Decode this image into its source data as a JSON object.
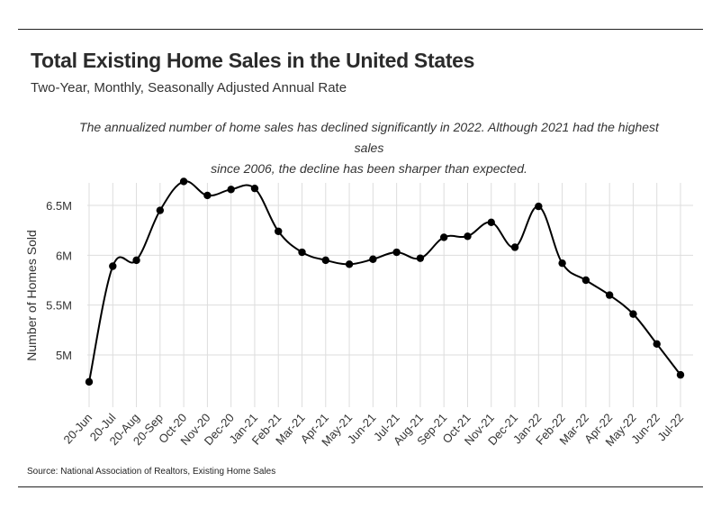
{
  "title": "Total Existing Home Sales in the United States",
  "subtitle": "Two-Year, Monthly, Seasonally Adjusted Annual Rate",
  "note_line1": "The annualized number of home sales has declined significantly in 2022. Although 2021 had the highest sales",
  "note_line2": "since 2006, the decline has been sharper than expected.",
  "source": "Source:  National Association of Realtors, Existing Home Sales",
  "chart_data": {
    "type": "line",
    "title": "Total Existing Home Sales in the United States",
    "subtitle": "Two-Year, Monthly, Seasonally Adjusted Annual Rate",
    "xlabel": "",
    "ylabel": "Number of Homes Sold",
    "categories": [
      "20-Jun",
      "20-Jul",
      "20-Aug",
      "20-Sep",
      "Oct-20",
      "Nov-20",
      "Dec-20",
      "Jan-21",
      "Feb-21",
      "Mar-21",
      "Apr-21",
      "May-21",
      "Jun-21",
      "Jul-21",
      "Aug-21",
      "Sep-21",
      "Oct-21",
      "Nov-21",
      "Dec-21",
      "Jan-22",
      "Feb-22",
      "Mar-22",
      "Apr-22",
      "May-22",
      "Jun-22",
      "Jul-22"
    ],
    "series": [
      {
        "values": [
          4.73,
          5.89,
          5.95,
          6.45,
          6.74,
          6.6,
          6.66,
          6.67,
          6.24,
          6.03,
          5.95,
          5.91,
          5.96,
          6.03,
          5.97,
          6.18,
          6.19,
          6.33,
          6.08,
          6.49,
          5.92,
          5.75,
          5.6,
          5.41,
          5.11,
          4.8
        ]
      }
    ],
    "yticks": [
      5.0,
      5.5,
      6.0,
      6.5
    ],
    "ytick_labels": [
      "5M",
      "5.5M",
      "6M",
      "6.5M"
    ],
    "ylim": [
      4.6,
      6.9
    ],
    "grid": true,
    "line_color": "#000000",
    "grid_color": "#dddddd"
  }
}
